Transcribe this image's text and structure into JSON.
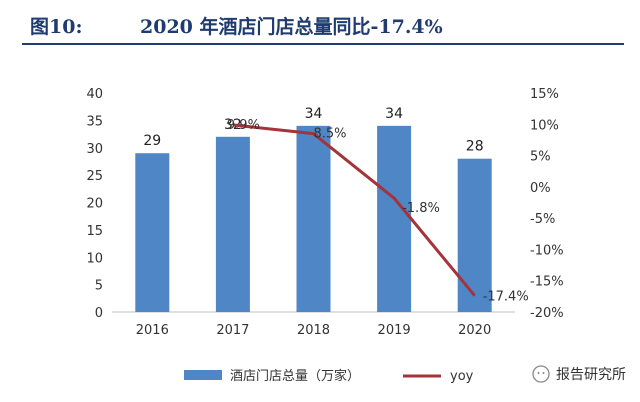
{
  "header": {
    "fig_label": "图10:",
    "title": "2020 年酒店门店总量同比-17.4%"
  },
  "watermark": "报告研究所",
  "colors": {
    "bar": "#4f86c6",
    "line": "#a5333a",
    "header": "#1f3b6f"
  },
  "chart_data": {
    "type": "bar",
    "categories": [
      "2016",
      "2017",
      "2018",
      "2019",
      "2020"
    ],
    "series": [
      {
        "name": "酒店门店总量（万家）",
        "type": "bar",
        "axis": "left",
        "values": [
          29,
          32,
          34,
          34,
          28
        ],
        "labels": [
          "29",
          "32",
          "34",
          "34",
          "28"
        ]
      },
      {
        "name": "yoy",
        "type": "line",
        "axis": "right",
        "values": [
          null,
          9.9,
          8.5,
          -1.8,
          -17.4
        ],
        "labels": [
          "",
          "9.9%",
          "8.5%",
          "-1.8%",
          "-17.4%"
        ]
      }
    ],
    "left_axis": {
      "ylim": [
        0,
        40
      ],
      "ticks": [
        "0",
        "5",
        "10",
        "15",
        "20",
        "25",
        "30",
        "35",
        "40"
      ]
    },
    "right_axis": {
      "ylim": [
        -20,
        15
      ],
      "ticks": [
        "-20%",
        "-15%",
        "-10%",
        "-5%",
        "0%",
        "5%",
        "10%",
        "15%"
      ]
    },
    "legend": "bottom",
    "grid": false
  }
}
